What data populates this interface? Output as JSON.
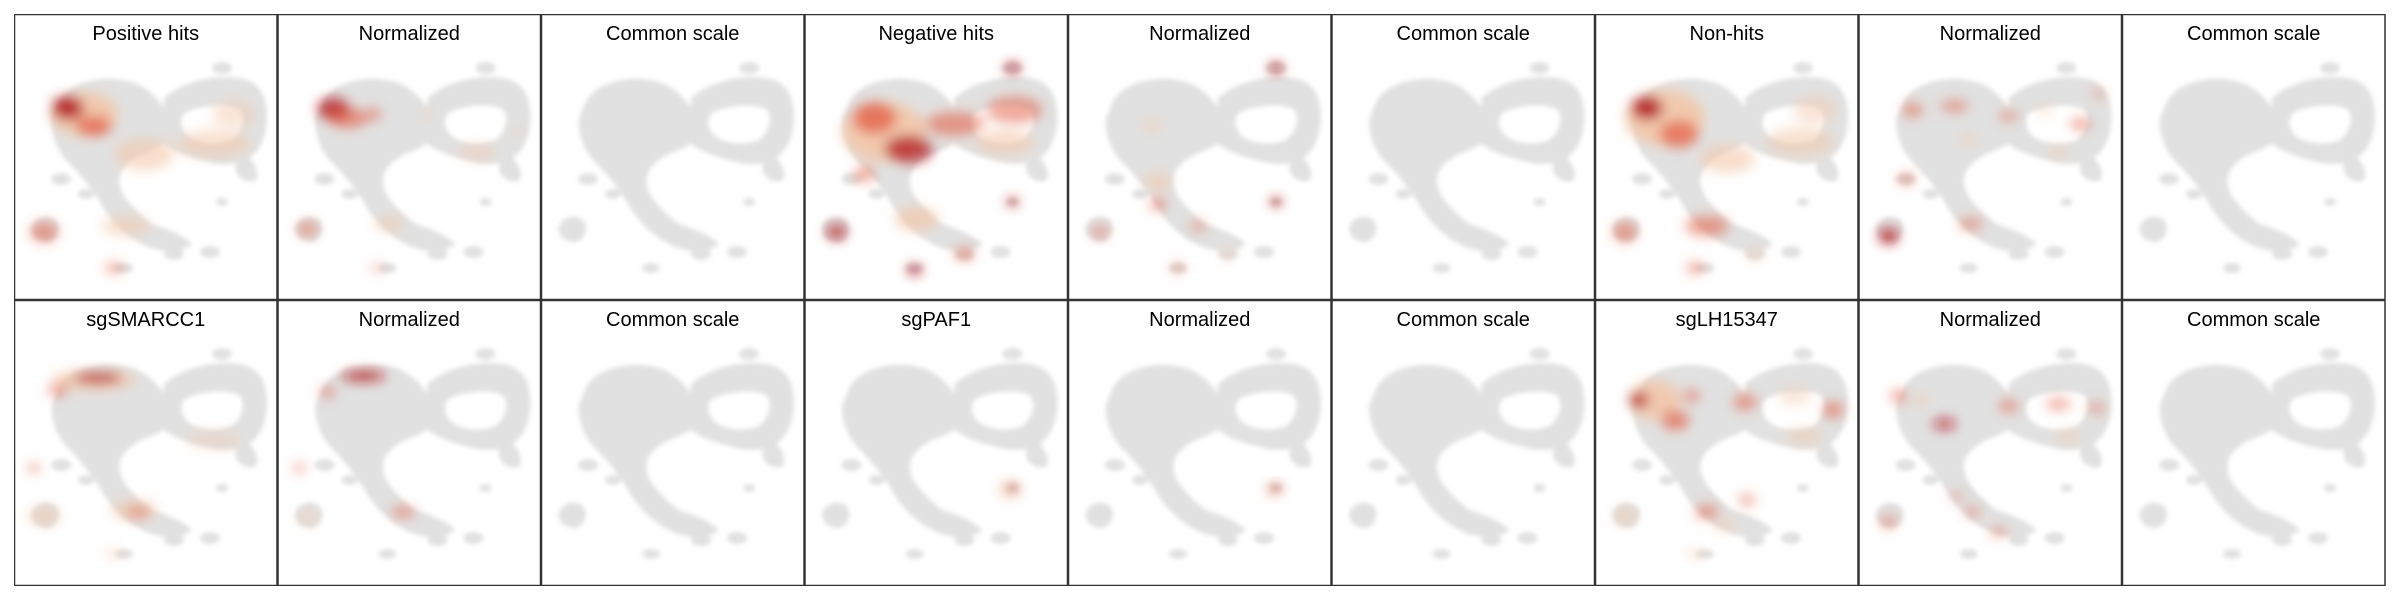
{
  "figure": {
    "rows": [
      {
        "panels": [
          {
            "title": "Positive hits",
            "heatmap": "positive-hits-raw"
          },
          {
            "title": "Normalized",
            "heatmap": "positive-hits-normalized"
          },
          {
            "title": "Common scale",
            "heatmap": "none"
          },
          {
            "title": "Negative hits",
            "heatmap": "negative-hits-raw"
          },
          {
            "title": "Normalized",
            "heatmap": "negative-hits-normalized"
          },
          {
            "title": "Common scale",
            "heatmap": "none"
          },
          {
            "title": "Non-hits",
            "heatmap": "non-hits-raw"
          },
          {
            "title": "Normalized",
            "heatmap": "non-hits-normalized"
          },
          {
            "title": "Common scale",
            "heatmap": "none"
          }
        ]
      },
      {
        "panels": [
          {
            "title": "sgSMARCC1",
            "heatmap": "sgSMARCC1-raw"
          },
          {
            "title": "Normalized",
            "heatmap": "sgSMARCC1-normalized"
          },
          {
            "title": "Common scale",
            "heatmap": "none"
          },
          {
            "title": "sgPAF1",
            "heatmap": "sgPAF1-raw"
          },
          {
            "title": "Normalized",
            "heatmap": "sgPAF1-normalized"
          },
          {
            "title": "Common scale",
            "heatmap": "none"
          },
          {
            "title": "sgLH15347",
            "heatmap": "sgLH15347-raw"
          },
          {
            "title": "Normalized",
            "heatmap": "sgLH15347-normalized"
          },
          {
            "title": "Common scale",
            "heatmap": "none"
          }
        ]
      }
    ],
    "colors": {
      "background_cells": "#e1e1e1",
      "density_low": "#f3c6a8",
      "density_mid": "#e2563c",
      "density_high": "#b2141b",
      "frame": "#333333"
    }
  }
}
